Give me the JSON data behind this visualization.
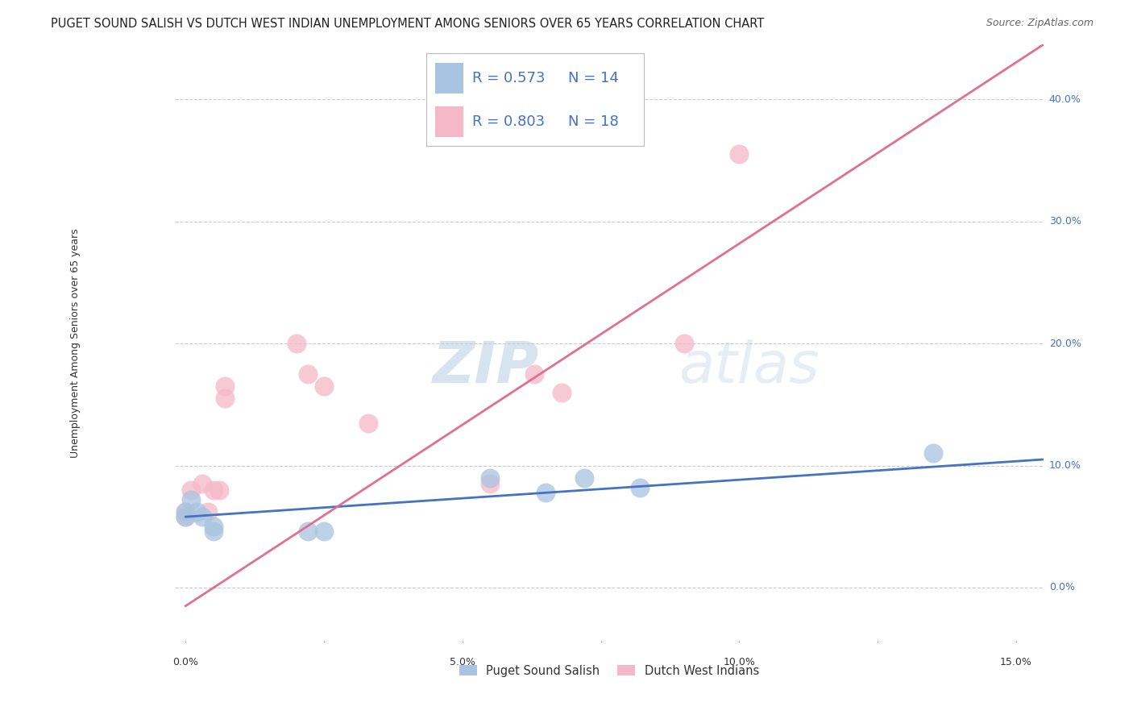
{
  "title": "PUGET SOUND SALISH VS DUTCH WEST INDIAN UNEMPLOYMENT AMONG SENIORS OVER 65 YEARS CORRELATION CHART",
  "source": "Source: ZipAtlas.com",
  "ylabel": "Unemployment Among Seniors over 65 years",
  "ylabel_right_labels": [
    "0.0%",
    "10.0%",
    "20.0%",
    "30.0%",
    "40.0%"
  ],
  "ylabel_right_values": [
    0.0,
    0.1,
    0.2,
    0.3,
    0.4
  ],
  "xlim": [
    -0.002,
    0.155
  ],
  "ylim": [
    -0.045,
    0.445
  ],
  "blue_R": 0.573,
  "blue_N": 14,
  "pink_R": 0.803,
  "pink_N": 18,
  "blue_label": "Puget Sound Salish",
  "pink_label": "Dutch West Indians",
  "blue_scatter_x": [
    0.0,
    0.0,
    0.001,
    0.002,
    0.003,
    0.005,
    0.005,
    0.022,
    0.025,
    0.055,
    0.065,
    0.072,
    0.082,
    0.135
  ],
  "blue_scatter_y": [
    0.058,
    0.062,
    0.072,
    0.062,
    0.058,
    0.05,
    0.046,
    0.046,
    0.046,
    0.09,
    0.078,
    0.09,
    0.082,
    0.11
  ],
  "pink_scatter_x": [
    0.0,
    0.0,
    0.001,
    0.003,
    0.004,
    0.005,
    0.006,
    0.007,
    0.007,
    0.02,
    0.022,
    0.025,
    0.033,
    0.055,
    0.063,
    0.068,
    0.09,
    0.1
  ],
  "pink_scatter_y": [
    0.058,
    0.062,
    0.08,
    0.085,
    0.062,
    0.08,
    0.08,
    0.155,
    0.165,
    0.2,
    0.175,
    0.165,
    0.135,
    0.085,
    0.175,
    0.16,
    0.2,
    0.355
  ],
  "blue_line_x": [
    0.0,
    0.155
  ],
  "blue_line_y": [
    0.058,
    0.105
  ],
  "pink_line_x": [
    0.0,
    0.155
  ],
  "pink_line_y": [
    -0.015,
    0.445
  ],
  "blue_color": "#a8c4e0",
  "pink_color": "#f5b8c8",
  "blue_line_color": "#4472c4",
  "pink_line_color": "#e07090",
  "watermark_zip": "ZIP",
  "watermark_atlas": "atlas",
  "background_color": "#ffffff",
  "grid_color": "#cccccc",
  "title_fontsize": 10.5,
  "source_fontsize": 9,
  "axis_label_fontsize": 9,
  "tick_fontsize": 9,
  "legend_fontsize": 13,
  "watermark_fontsize": 52
}
